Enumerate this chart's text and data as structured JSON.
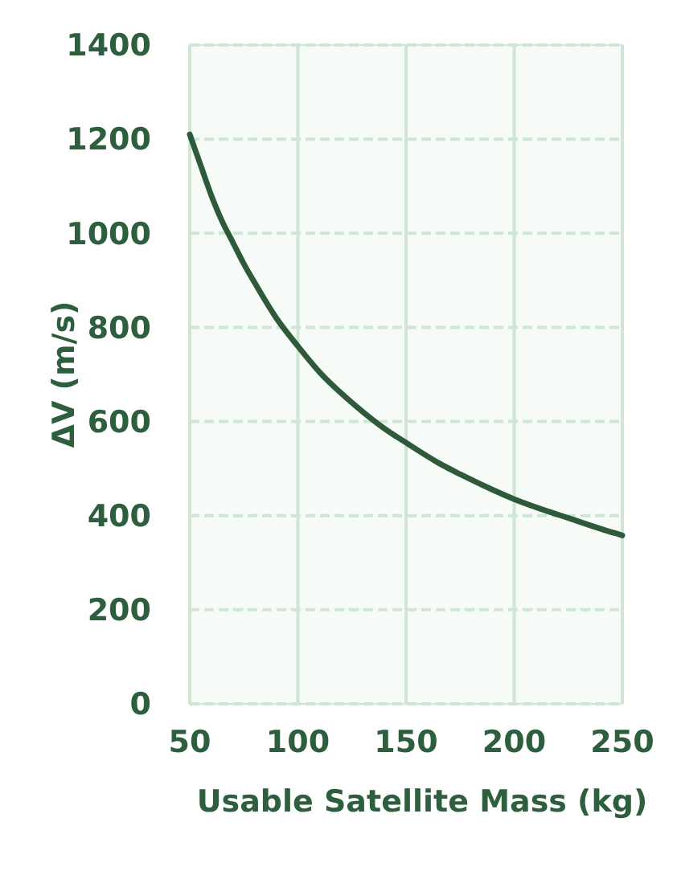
{
  "chart_data": {
    "type": "line",
    "xlabel": "Usable Satellite Mass (kg)",
    "ylabel": "ΔV (m/s)",
    "x": [
      50,
      55,
      60,
      65,
      70,
      75,
      80,
      90,
      100,
      110,
      125,
      140,
      150,
      165,
      175,
      190,
      200,
      215,
      225,
      240,
      250
    ],
    "series": [
      {
        "color": "#2e5a3a",
        "values": [
          1210,
          1145,
          1080,
          1025,
          980,
          935,
          895,
          820,
          760,
          705,
          640,
          585,
          555,
          512,
          488,
          455,
          435,
          410,
          395,
          372,
          358
        ]
      }
    ],
    "xlim": [
      50,
      250
    ],
    "xticks": [
      50,
      100,
      150,
      200,
      250
    ],
    "ylim": [
      0,
      1400
    ],
    "yticks": [
      0,
      200,
      400,
      600,
      800,
      1000,
      1200,
      1400
    ],
    "grid": true,
    "marker": "none",
    "line_style": "solid"
  }
}
